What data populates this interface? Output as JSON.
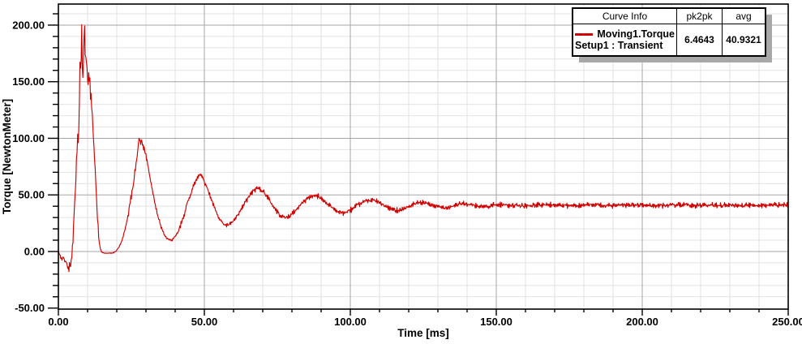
{
  "colors": {
    "curve": "#d10000",
    "grid_major": "#a6a6a6",
    "grid_minor": "#e2e2e2",
    "axis": "#000000",
    "legend_shadow": "#a8a8a8",
    "background": "#ffffff"
  },
  "legend": {
    "header": {
      "curve_info": "Curve Info",
      "pk2pk": "pk2pk",
      "avg": "avg"
    },
    "row": {
      "name": "Moving1.Torque",
      "setup": "Setup1 : Transient",
      "pk2pk": "6.4643",
      "avg": "40.9321",
      "color": "#d10000"
    }
  },
  "chart_data": {
    "type": "line",
    "title": "",
    "xlabel": "Time [ms]",
    "ylabel": "Torque [NewtonMeter]",
    "xlim": [
      0,
      250
    ],
    "ylim": [
      -50.9,
      218.6
    ],
    "grid": true,
    "legend_position": "top-right",
    "x_major_ticks": [
      0,
      50,
      100,
      150,
      200,
      250
    ],
    "x_tick_labels": [
      "0.00",
      "50.00",
      "100.00",
      "150.00",
      "200.00",
      "250.00"
    ],
    "x_minor_step": 10,
    "y_major_ticks": [
      -50,
      0,
      50,
      100,
      150,
      200
    ],
    "y_tick_labels": [
      "-50.00",
      "0.00",
      "50.00",
      "100.00",
      "150.00",
      "200.00"
    ],
    "y_minor_step": 10,
    "stats": {
      "pk2pk": 6.4643,
      "avg": 40.9321
    },
    "series": [
      {
        "name": "Moving1.Torque",
        "setup": "Setup1 : Transient",
        "color": "#d10000",
        "sample_step_ms": 0.2,
        "noise_seed": 42,
        "keypoints": [
          [
            0,
            0
          ],
          [
            0.6,
            -4
          ],
          [
            1.2,
            -7
          ],
          [
            1.8,
            -5
          ],
          [
            2.3,
            -10
          ],
          [
            2.7,
            -8
          ],
          [
            3.1,
            -14
          ],
          [
            3.5,
            -16
          ],
          [
            3.8,
            -11
          ],
          [
            4.1,
            -14
          ],
          [
            4.5,
            -6
          ],
          [
            4.9,
            8
          ],
          [
            5.3,
            28
          ],
          [
            5.7,
            50
          ],
          [
            6.1,
            72
          ],
          [
            6.4,
            90
          ],
          [
            6.7,
            104
          ],
          [
            6.9,
            96
          ],
          [
            7.1,
            120
          ],
          [
            7.3,
            150
          ],
          [
            7.45,
            185
          ],
          [
            7.6,
            158
          ],
          [
            7.8,
            172
          ],
          [
            8.0,
            199
          ],
          [
            8.15,
            170
          ],
          [
            8.3,
            150
          ],
          [
            8.5,
            160
          ],
          [
            8.7,
            178
          ],
          [
            8.9,
            201
          ],
          [
            9.1,
            185
          ],
          [
            9.3,
            170
          ],
          [
            9.6,
            172
          ],
          [
            9.9,
            158
          ],
          [
            10.2,
            148
          ],
          [
            10.5,
            156
          ],
          [
            10.8,
            146
          ],
          [
            11.1,
            138
          ],
          [
            11.5,
            124
          ],
          [
            12,
            103
          ],
          [
            12.5,
            78
          ],
          [
            13,
            50
          ],
          [
            13.5,
            24
          ],
          [
            14,
            8
          ],
          [
            14.5,
            1
          ],
          [
            15,
            -1
          ],
          [
            16,
            -1.5
          ],
          [
            17,
            -1.5
          ],
          [
            18,
            -1.5
          ],
          [
            19,
            -1
          ],
          [
            19.8,
            0.5
          ],
          [
            20.8,
            4
          ],
          [
            21.8,
            10
          ],
          [
            22.8,
            19
          ],
          [
            23.8,
            31
          ],
          [
            24.8,
            46
          ],
          [
            25.8,
            62
          ],
          [
            26.6,
            78
          ],
          [
            27.2,
            90
          ],
          [
            27.7,
            100
          ],
          [
            28.1,
            96
          ],
          [
            28.5,
            99
          ],
          [
            29,
            93
          ],
          [
            29.6,
            89
          ],
          [
            30.3,
            81
          ],
          [
            31,
            71
          ],
          [
            32,
            57
          ],
          [
            33,
            44
          ],
          [
            34,
            32
          ],
          [
            35,
            23
          ],
          [
            36,
            16
          ],
          [
            37,
            12
          ],
          [
            38,
            10
          ],
          [
            39,
            10.5
          ],
          [
            40,
            13
          ],
          [
            41,
            17
          ],
          [
            42,
            24
          ],
          [
            43,
            32
          ],
          [
            44,
            41
          ],
          [
            45,
            49
          ],
          [
            46,
            56
          ],
          [
            47,
            62
          ],
          [
            48,
            67
          ],
          [
            48.6,
            69
          ],
          [
            49.3,
            66
          ],
          [
            50,
            62
          ],
          [
            51,
            56
          ],
          [
            52,
            49
          ],
          [
            53,
            42
          ],
          [
            54,
            35
          ],
          [
            55,
            30
          ],
          [
            56,
            26
          ],
          [
            57,
            23.5
          ],
          [
            58,
            23
          ],
          [
            59,
            24.5
          ],
          [
            60,
            27
          ],
          [
            61,
            30
          ],
          [
            62,
            34
          ],
          [
            63,
            39
          ],
          [
            64,
            43.5
          ],
          [
            65,
            47.5
          ],
          [
            66,
            51
          ],
          [
            67,
            54
          ],
          [
            68,
            56
          ],
          [
            69,
            55.5
          ],
          [
            70,
            53.5
          ],
          [
            71,
            50.5
          ],
          [
            72,
            46.5
          ],
          [
            73,
            42.5
          ],
          [
            74,
            38.5
          ],
          [
            75,
            35
          ],
          [
            76,
            32
          ],
          [
            77,
            30.5
          ],
          [
            78,
            30
          ],
          [
            79,
            31
          ],
          [
            80,
            33
          ],
          [
            81,
            35.5
          ],
          [
            82,
            38.5
          ],
          [
            83,
            41.5
          ],
          [
            84,
            44
          ],
          [
            85,
            46.5
          ],
          [
            86,
            48
          ],
          [
            87,
            49
          ],
          [
            88,
            49.5
          ],
          [
            89,
            48.5
          ],
          [
            90,
            47
          ],
          [
            91,
            45
          ],
          [
            92,
            42.5
          ],
          [
            93,
            40.5
          ],
          [
            94,
            38.5
          ],
          [
            95,
            36.5
          ],
          [
            96,
            35
          ],
          [
            97,
            34.2
          ],
          [
            98,
            34.2
          ],
          [
            99,
            35
          ],
          [
            100,
            36.5
          ],
          [
            101,
            38
          ],
          [
            102,
            40
          ],
          [
            103,
            41.5
          ],
          [
            104,
            43
          ],
          [
            105,
            44.3
          ],
          [
            106,
            45.2
          ],
          [
            107,
            45.5
          ],
          [
            108,
            45.2
          ],
          [
            109,
            44.3
          ],
          [
            110,
            43
          ],
          [
            111,
            41.5
          ],
          [
            112,
            40
          ],
          [
            113,
            38.6
          ],
          [
            114,
            37.5
          ],
          [
            115,
            36.8
          ],
          [
            116,
            36.5
          ],
          [
            117,
            36.8
          ],
          [
            118,
            37.5
          ],
          [
            119,
            38.5
          ],
          [
            120,
            39.6
          ],
          [
            121,
            40.8
          ],
          [
            122,
            41.8
          ],
          [
            123,
            42.6
          ],
          [
            124,
            43
          ],
          [
            125,
            43
          ],
          [
            126,
            42.6
          ],
          [
            127,
            41.9
          ],
          [
            128,
            41
          ],
          [
            129,
            40.2
          ],
          [
            130,
            39.5
          ],
          [
            131,
            39
          ],
          [
            132,
            38.8
          ],
          [
            133,
            39
          ],
          [
            134,
            39.5
          ],
          [
            135,
            40.2
          ],
          [
            136,
            41
          ],
          [
            137,
            41.6
          ],
          [
            138,
            42
          ],
          [
            139,
            42.1
          ],
          [
            140,
            41.9
          ],
          [
            141,
            41.4
          ],
          [
            142,
            40.8
          ],
          [
            143,
            40.2
          ],
          [
            144,
            39.8
          ],
          [
            145,
            39.6
          ],
          [
            146,
            39.7
          ],
          [
            147,
            40
          ],
          [
            148,
            40.5
          ],
          [
            149,
            41
          ],
          [
            150,
            41.3
          ],
          [
            152,
            41.4
          ],
          [
            154,
            41.1
          ],
          [
            156,
            40.6
          ],
          [
            158,
            40.3
          ],
          [
            160,
            40.3
          ],
          [
            162,
            40.6
          ],
          [
            164,
            41
          ],
          [
            166,
            41.3
          ],
          [
            168,
            41.3
          ],
          [
            170,
            41
          ],
          [
            172,
            40.6
          ],
          [
            174,
            40.4
          ],
          [
            176,
            40.5
          ],
          [
            178,
            40.8
          ],
          [
            180,
            41.1
          ],
          [
            183,
            41.2
          ],
          [
            186,
            40.8
          ],
          [
            189,
            40.5
          ],
          [
            192,
            40.7
          ],
          [
            195,
            41
          ],
          [
            198,
            41.1
          ],
          [
            201,
            40.8
          ],
          [
            204,
            40.6
          ],
          [
            208,
            40.8
          ],
          [
            212,
            41
          ],
          [
            216,
            40.8
          ],
          [
            220,
            40.7
          ],
          [
            225,
            40.9
          ],
          [
            230,
            41
          ],
          [
            235,
            40.8
          ],
          [
            240,
            40.9
          ],
          [
            245,
            41
          ],
          [
            250,
            40.9
          ]
        ],
        "noise_segments": [
          [
            0,
            3.0,
            1.3
          ],
          [
            3.0,
            4.8,
            3.0
          ],
          [
            4.8,
            6.8,
            5.0
          ],
          [
            6.8,
            11.8,
            7.0
          ],
          [
            11.8,
            13.8,
            3.0
          ],
          [
            13.8,
            20,
            0.35
          ],
          [
            20,
            23.5,
            1.0
          ],
          [
            23.5,
            30.5,
            3.2
          ],
          [
            30.5,
            36,
            1.6
          ],
          [
            36,
            41,
            1.1
          ],
          [
            41,
            51,
            2.5
          ],
          [
            51,
            59,
            1.7
          ],
          [
            59,
            250.1,
            2.3
          ]
        ]
      }
    ]
  }
}
